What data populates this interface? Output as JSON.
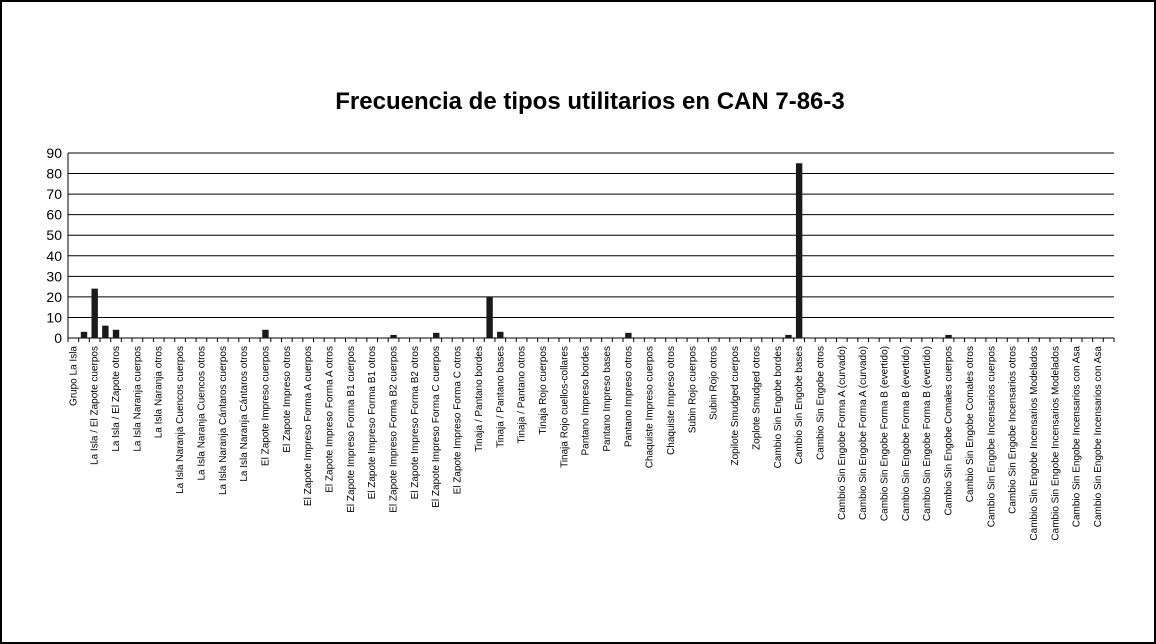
{
  "chart_data": {
    "type": "bar",
    "title": "Frecuencia de tipos utilitarios en CAN 7-86-3",
    "categories": [
      "Grupo La Isla",
      null,
      "La Isla / El Zapote cuerpos",
      null,
      "La Isla / El Zapote otros",
      null,
      "La Isla Naranja cuerpos",
      null,
      "La Isla Naranja otros",
      null,
      "La Isla Naranja Cuencos cuerpos",
      null,
      "La Isla Naranja Cuencos otros",
      null,
      "La Isla Naranja Cántaros cuerpos",
      null,
      "La Isla Naranja Cántaros otros",
      null,
      "El Zapote Impreso cuerpos",
      null,
      "El Zapote Impreso otros",
      null,
      "El Zapote Impreso Forma A cuerpos",
      null,
      "El Zapote Impreso Forma A otros",
      null,
      "El Zapote Impreso Forma B1 cuerpos",
      null,
      "El Zapote Impreso Forma B1 otros",
      null,
      "El Zapote Impreso Forma B2 cuerpos",
      null,
      "El Zapote Impreso Forma B2 otros",
      null,
      "El Zapote Impreso Forma C cuerpos",
      null,
      "El Zapote Impreso Forma C otros",
      null,
      "Tinaja / Pantano bordes",
      null,
      "Tinaja / Pantano bases",
      null,
      "Tinaja / Pantano otros",
      null,
      "Tinaja Rojo cuerpos",
      null,
      "Tinaja Rojo cuellos-collares",
      null,
      "Pantano Impreso bordes",
      null,
      "Pantano Impreso bases",
      null,
      "Pantano Impreso otros",
      null,
      "Chaquiste Impreso cuerpos",
      null,
      "Chaquiste Impreso otros",
      null,
      "Subin Rojo cuerpos",
      null,
      "Subin Rojo otros",
      null,
      "Zopilote Smudged cuerpos",
      null,
      "Zoplote Smudged otros",
      null,
      "Cambio Sin Engobe bordes",
      null,
      "Cambio Sin Engobe bases",
      null,
      "Cambio Sin Engobe otros",
      null,
      "Cambio Sin Engobe Forma A (curvado)",
      null,
      "Cambio Sin Engobe Forma A (curvado)",
      null,
      "Cambio Sin Engobe Forma B (evertido)",
      null,
      "Cambio Sin Engobe Forma B (evertido)",
      null,
      "Cambio Sin Engobe Forma B (evertido)",
      null,
      "Cambio Sin Engobe Comales cuerpos",
      null,
      "Cambio Sin Engobe Comales otros",
      null,
      "Cambio Sin Engobe Incensarios cuerpos",
      null,
      "Cambio Sin Engobe Incensarios otros",
      null,
      "Cambio Sin Engobe Incensarios Modelados",
      null,
      "Cambio Sin Engobe Incensarios Modelados",
      null,
      "Cambio Sin Engobe Incensarios con Asa",
      null,
      "Cambio Sin Engobe Incensarios con Asa",
      null
    ],
    "values": [
      0,
      3,
      24,
      6,
      4,
      0,
      0,
      0,
      0,
      0,
      0,
      0,
      0,
      0,
      0,
      0,
      0,
      0,
      4,
      0,
      0,
      0,
      0,
      0,
      0,
      0,
      0,
      0,
      0,
      0,
      1.5,
      0,
      0,
      0,
      2.5,
      0,
      0,
      0,
      0,
      20,
      3,
      0,
      0,
      0,
      0,
      0,
      0,
      0,
      0,
      0,
      0,
      0,
      2.5,
      0,
      0,
      0,
      0,
      0,
      0,
      0,
      0,
      0,
      0,
      0,
      0,
      0,
      0,
      1.5,
      85,
      0,
      0,
      0,
      0,
      0,
      0,
      0,
      0,
      0,
      0,
      0,
      0,
      0,
      1.5,
      0,
      0,
      0,
      0,
      0,
      0,
      0,
      0,
      0,
      0,
      0,
      0,
      0,
      0,
      0
    ],
    "color": "#1a1a1a",
    "ylim": [
      0,
      90
    ],
    "yticks": [
      0,
      10,
      20,
      30,
      40,
      50,
      60,
      70,
      80,
      90
    ],
    "grid": true
  }
}
